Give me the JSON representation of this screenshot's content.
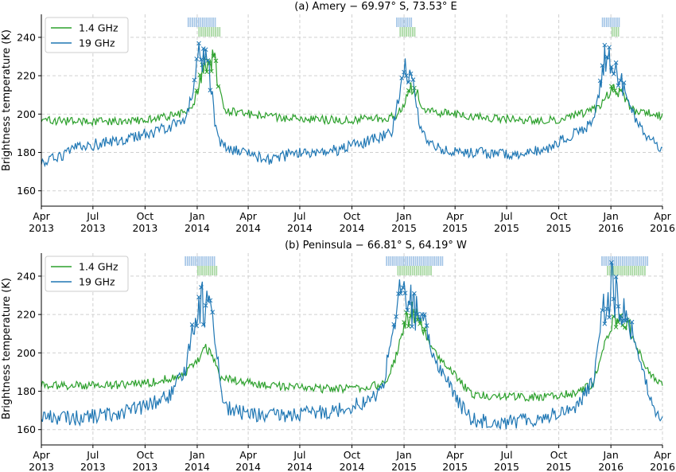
{
  "figure": {
    "ylabel": "Brightness temperature (K)",
    "colors": {
      "ghz14": "#2ca02c",
      "ghz19": "#1f77b4",
      "ghz14_mark": "#a9d8a3",
      "ghz19_mark": "#a7c7e7",
      "grid": "#d0d0d0"
    }
  },
  "chart_data": [
    {
      "type": "line",
      "title": "(a) Amery − 69.97° S, 73.53° E",
      "ylabel": "Brightness temperature (K)",
      "xlim": [
        "2013-04-01",
        "2016-04-01"
      ],
      "ylim": [
        152,
        252
      ],
      "yticks": [
        160,
        180,
        200,
        220,
        240
      ],
      "xticks": [
        {
          "date": "2013-04-01",
          "label": [
            "Apr",
            "2013"
          ]
        },
        {
          "date": "2013-07-01",
          "label": [
            "Jul",
            "2013"
          ]
        },
        {
          "date": "2013-10-01",
          "label": [
            "Oct",
            "2013"
          ]
        },
        {
          "date": "2014-01-01",
          "label": [
            "Jan",
            "2014"
          ]
        },
        {
          "date": "2014-04-01",
          "label": [
            "Apr",
            "2014"
          ]
        },
        {
          "date": "2014-07-01",
          "label": [
            "Jul",
            "2014"
          ]
        },
        {
          "date": "2014-10-01",
          "label": [
            "Oct",
            "2014"
          ]
        },
        {
          "date": "2015-01-01",
          "label": [
            "Jan",
            "2015"
          ]
        },
        {
          "date": "2015-04-01",
          "label": [
            "Apr",
            "2015"
          ]
        },
        {
          "date": "2015-07-01",
          "label": [
            "Jul",
            "2015"
          ]
        },
        {
          "date": "2015-10-01",
          "label": [
            "Oct",
            "2015"
          ]
        },
        {
          "date": "2016-01-01",
          "label": [
            "Jan",
            "2016"
          ]
        },
        {
          "date": "2016-04-01",
          "label": [
            "Apr",
            "2016"
          ]
        }
      ],
      "grid": true,
      "legend_position": "top-left",
      "series": [
        {
          "name": "1.4 GHz",
          "color": "#2ca02c",
          "noise": 2.2,
          "points": [
            [
              "2013-04-01",
              197
            ],
            [
              "2013-06-01",
              196
            ],
            [
              "2013-08-01",
              196
            ],
            [
              "2013-10-01",
              197
            ],
            [
              "2013-12-01",
              200
            ],
            [
              "2013-12-20",
              202
            ],
            [
              "2014-01-01",
              210
            ],
            [
              "2014-01-10",
              222
            ],
            [
              "2014-01-20",
              231
            ],
            [
              "2014-02-01",
              226
            ],
            [
              "2014-02-10",
              210
            ],
            [
              "2014-02-20",
              202
            ],
            [
              "2014-04-01",
              200
            ],
            [
              "2014-06-01",
              198
            ],
            [
              "2014-08-01",
              197
            ],
            [
              "2014-10-01",
              197
            ],
            [
              "2014-12-01",
              198
            ],
            [
              "2014-12-20",
              200
            ],
            [
              "2015-01-01",
              205
            ],
            [
              "2015-01-12",
              214
            ],
            [
              "2015-01-25",
              210
            ],
            [
              "2015-02-05",
              202
            ],
            [
              "2015-02-20",
              201
            ],
            [
              "2015-04-01",
              200
            ],
            [
              "2015-06-01",
              198
            ],
            [
              "2015-08-01",
              197
            ],
            [
              "2015-10-01",
              197
            ],
            [
              "2015-12-01",
              202
            ],
            [
              "2015-12-15",
              205
            ],
            [
              "2016-01-01",
              212
            ],
            [
              "2016-01-10",
              214
            ],
            [
              "2016-01-25",
              208
            ],
            [
              "2016-02-10",
              202
            ],
            [
              "2016-04-01",
              199
            ]
          ]
        },
        {
          "name": "19 GHz",
          "color": "#1f77b4",
          "noise": 3.0,
          "points": [
            [
              "2013-04-01",
              175
            ],
            [
              "2013-05-01",
              177
            ],
            [
              "2013-06-01",
              182
            ],
            [
              "2013-07-01",
              184
            ],
            [
              "2013-09-01",
              187
            ],
            [
              "2013-11-01",
              192
            ],
            [
              "2013-12-10",
              197
            ],
            [
              "2013-12-25",
              213
            ],
            [
              "2014-01-05",
              230
            ],
            [
              "2014-01-12",
              234
            ],
            [
              "2014-01-18",
              224
            ],
            [
              "2014-01-25",
              218
            ],
            [
              "2014-02-01",
              196
            ],
            [
              "2014-02-10",
              185
            ],
            [
              "2014-03-01",
              182
            ],
            [
              "2014-04-01",
              180
            ],
            [
              "2014-05-01",
              176
            ],
            [
              "2014-06-01",
              178
            ],
            [
              "2014-07-01",
              180
            ],
            [
              "2014-09-01",
              181
            ],
            [
              "2014-11-01",
              186
            ],
            [
              "2014-12-10",
              190
            ],
            [
              "2014-12-20",
              205
            ],
            [
              "2014-12-28",
              222
            ],
            [
              "2015-01-05",
              226
            ],
            [
              "2015-01-15",
              222
            ],
            [
              "2015-01-22",
              205
            ],
            [
              "2015-02-01",
              190
            ],
            [
              "2015-03-01",
              182
            ],
            [
              "2015-05-01",
              180
            ],
            [
              "2015-07-01",
              179
            ],
            [
              "2015-09-01",
              181
            ],
            [
              "2015-11-01",
              190
            ],
            [
              "2015-12-01",
              196
            ],
            [
              "2015-12-15",
              215
            ],
            [
              "2015-12-22",
              230
            ],
            [
              "2016-01-05",
              225
            ],
            [
              "2016-01-20",
              216
            ],
            [
              "2016-02-10",
              200
            ],
            [
              "2016-03-01",
              190
            ],
            [
              "2016-04-01",
              180
            ]
          ]
        }
      ],
      "markers": {
        "19 GHz": [
          [
            "2013-12-15",
            "2014-02-01"
          ],
          [
            "2014-12-18",
            "2015-01-15"
          ],
          [
            "2015-12-16",
            "2016-01-15"
          ]
        ],
        "1.4 GHz": [
          [
            "2014-01-03",
            "2014-02-12"
          ],
          [
            "2014-12-24",
            "2015-01-20"
          ],
          [
            "2016-01-02",
            "2016-01-16"
          ]
        ]
      }
    },
    {
      "type": "line",
      "title": "(b) Peninsula − 66.81° S, 64.19° W",
      "ylabel": "Brightness temperature (K)",
      "xlim": [
        "2013-04-01",
        "2016-04-01"
      ],
      "ylim": [
        152,
        252
      ],
      "yticks": [
        160,
        180,
        200,
        220,
        240
      ],
      "xticks": [
        {
          "date": "2013-04-01",
          "label": [
            "Apr",
            "2013"
          ]
        },
        {
          "date": "2013-07-01",
          "label": [
            "Jul",
            "2013"
          ]
        },
        {
          "date": "2013-10-01",
          "label": [
            "Oct",
            "2013"
          ]
        },
        {
          "date": "2014-01-01",
          "label": [
            "Jan",
            "2014"
          ]
        },
        {
          "date": "2014-04-01",
          "label": [
            "Apr",
            "2014"
          ]
        },
        {
          "date": "2014-07-01",
          "label": [
            "Jul",
            "2014"
          ]
        },
        {
          "date": "2014-10-01",
          "label": [
            "Oct",
            "2014"
          ]
        },
        {
          "date": "2015-01-01",
          "label": [
            "Jan",
            "2015"
          ]
        },
        {
          "date": "2015-04-01",
          "label": [
            "Apr",
            "2015"
          ]
        },
        {
          "date": "2015-07-01",
          "label": [
            "Jul",
            "2015"
          ]
        },
        {
          "date": "2015-10-01",
          "label": [
            "Oct",
            "2015"
          ]
        },
        {
          "date": "2016-01-01",
          "label": [
            "Jan",
            "2016"
          ]
        },
        {
          "date": "2016-04-01",
          "label": [
            "Apr",
            "2016"
          ]
        }
      ],
      "grid": true,
      "legend_position": "top-left",
      "series": [
        {
          "name": "1.4 GHz",
          "color": "#2ca02c",
          "noise": 2.2,
          "points": [
            [
              "2013-04-01",
              183
            ],
            [
              "2013-06-01",
              183
            ],
            [
              "2013-08-01",
              183
            ],
            [
              "2013-10-01",
              184
            ],
            [
              "2013-12-01",
              188
            ],
            [
              "2013-12-20",
              192
            ],
            [
              "2014-01-05",
              197
            ],
            [
              "2014-01-15",
              203
            ],
            [
              "2014-01-28",
              198
            ],
            [
              "2014-02-10",
              188
            ],
            [
              "2014-03-01",
              186
            ],
            [
              "2014-05-01",
              183
            ],
            [
              "2014-07-01",
              182
            ],
            [
              "2014-09-01",
              181
            ],
            [
              "2014-11-01",
              182
            ],
            [
              "2014-12-01",
              185
            ],
            [
              "2014-12-15",
              195
            ],
            [
              "2015-01-01",
              215
            ],
            [
              "2015-01-15",
              222
            ],
            [
              "2015-01-30",
              215
            ],
            [
              "2015-02-15",
              205
            ],
            [
              "2015-03-01",
              198
            ],
            [
              "2015-03-20",
              192
            ],
            [
              "2015-04-10",
              185
            ],
            [
              "2015-05-01",
              178
            ],
            [
              "2015-07-01",
              177
            ],
            [
              "2015-09-01",
              177
            ],
            [
              "2015-11-01",
              179
            ],
            [
              "2015-12-01",
              184
            ],
            [
              "2015-12-20",
              205
            ],
            [
              "2016-01-05",
              215
            ],
            [
              "2016-01-20",
              220
            ],
            [
              "2016-02-05",
              212
            ],
            [
              "2016-02-20",
              200
            ],
            [
              "2016-03-10",
              188
            ],
            [
              "2016-04-01",
              183
            ]
          ]
        },
        {
          "name": "19 GHz",
          "color": "#1f77b4",
          "noise": 4.0,
          "points": [
            [
              "2013-04-01",
              167
            ],
            [
              "2013-06-01",
              166
            ],
            [
              "2013-08-01",
              168
            ],
            [
              "2013-10-01",
              172
            ],
            [
              "2013-11-15",
              178
            ],
            [
              "2013-12-10",
              190
            ],
            [
              "2013-12-25",
              215
            ],
            [
              "2014-01-05",
              228
            ],
            [
              "2014-01-15",
              224
            ],
            [
              "2014-01-25",
              226
            ],
            [
              "2014-02-05",
              200
            ],
            [
              "2014-02-15",
              175
            ],
            [
              "2014-03-01",
              170
            ],
            [
              "2014-05-01",
              167
            ],
            [
              "2014-07-01",
              168
            ],
            [
              "2014-09-01",
              170
            ],
            [
              "2014-11-01",
              175
            ],
            [
              "2014-11-25",
              182
            ],
            [
              "2014-12-10",
              210
            ],
            [
              "2014-12-25",
              228
            ],
            [
              "2015-01-05",
              230
            ],
            [
              "2015-01-20",
              222
            ],
            [
              "2015-02-05",
              215
            ],
            [
              "2015-02-20",
              200
            ],
            [
              "2015-03-05",
              192
            ],
            [
              "2015-03-20",
              185
            ],
            [
              "2015-04-05",
              175
            ],
            [
              "2015-05-01",
              165
            ],
            [
              "2015-07-01",
              164
            ],
            [
              "2015-09-01",
              166
            ],
            [
              "2015-11-01",
              172
            ],
            [
              "2015-12-01",
              185
            ],
            [
              "2015-12-15",
              222
            ],
            [
              "2016-01-01",
              235
            ],
            [
              "2016-01-15",
              225
            ],
            [
              "2016-02-01",
              215
            ],
            [
              "2016-02-15",
              205
            ],
            [
              "2016-03-01",
              185
            ],
            [
              "2016-03-20",
              170
            ],
            [
              "2016-04-01",
              166
            ]
          ]
        }
      ],
      "markers": {
        "19 GHz": [
          [
            "2013-12-10",
            "2014-02-01"
          ],
          [
            "2014-11-30",
            "2015-03-12"
          ],
          [
            "2015-12-15",
            "2016-03-05"
          ]
        ],
        "1.4 GHz": [
          [
            "2014-01-01",
            "2014-02-05"
          ],
          [
            "2014-12-20",
            "2015-02-20"
          ],
          [
            "2015-12-25",
            "2016-03-01"
          ]
        ]
      }
    }
  ]
}
